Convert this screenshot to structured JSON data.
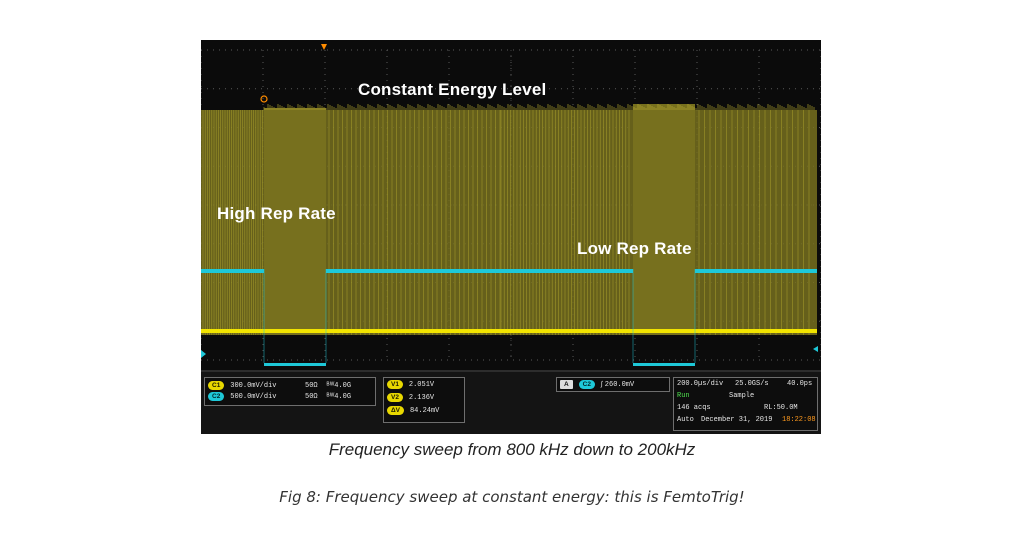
{
  "screen": {
    "labels": {
      "constant_energy": "Constant Energy Level",
      "high_rep": "High Rep Rate",
      "low_rep": "Low Rep Rate"
    },
    "colors": {
      "background": "#0b0b0b",
      "pulse_fill": "#77701e",
      "pulse_line": "#b8ad30",
      "ch1_trace": "#f2e400",
      "ch2_trace": "#1ec8d8",
      "grid": "#5a5a5a",
      "trigger_marker": "#ff8c00"
    },
    "markers": {
      "trigger_top": "T",
      "ch1_marker": "1",
      "ch2_marker": "2"
    }
  },
  "readout": {
    "channels": [
      {
        "badge": "C1",
        "scale": "300.0mV/div",
        "impedance": "50Ω",
        "bandwidth": "4.0G"
      },
      {
        "badge": "C2",
        "scale": "500.0mV/div",
        "impedance": "50Ω",
        "bandwidth": "4.0G"
      }
    ],
    "cursors": [
      {
        "badge": "V1",
        "value": "2.051V"
      },
      {
        "badge": "V2",
        "value": "2.136V"
      },
      {
        "badge": "ΔV",
        "value": "84.24mV"
      }
    ],
    "trigger": {
      "mode_badge": "A",
      "source_badge": "C2",
      "slope": "∫",
      "level": "260.0mV"
    },
    "acquisition": {
      "timebase": "200.0µs/div",
      "sample_rate": "25.0GS/s",
      "resolution": "40.0ps",
      "state": "Run",
      "mode": "Sample",
      "acqs": "146 acqs",
      "record_length": "RL:50.0M",
      "trigger_mode": "Auto",
      "date": "December 31, 2019",
      "time": "18:22:08"
    }
  },
  "captions": {
    "subtitle": "Frequency sweep from 800 kHz down to 200kHz",
    "figure": "Fig 8: Frequency sweep at constant energy: this is FemtoTrig!"
  }
}
